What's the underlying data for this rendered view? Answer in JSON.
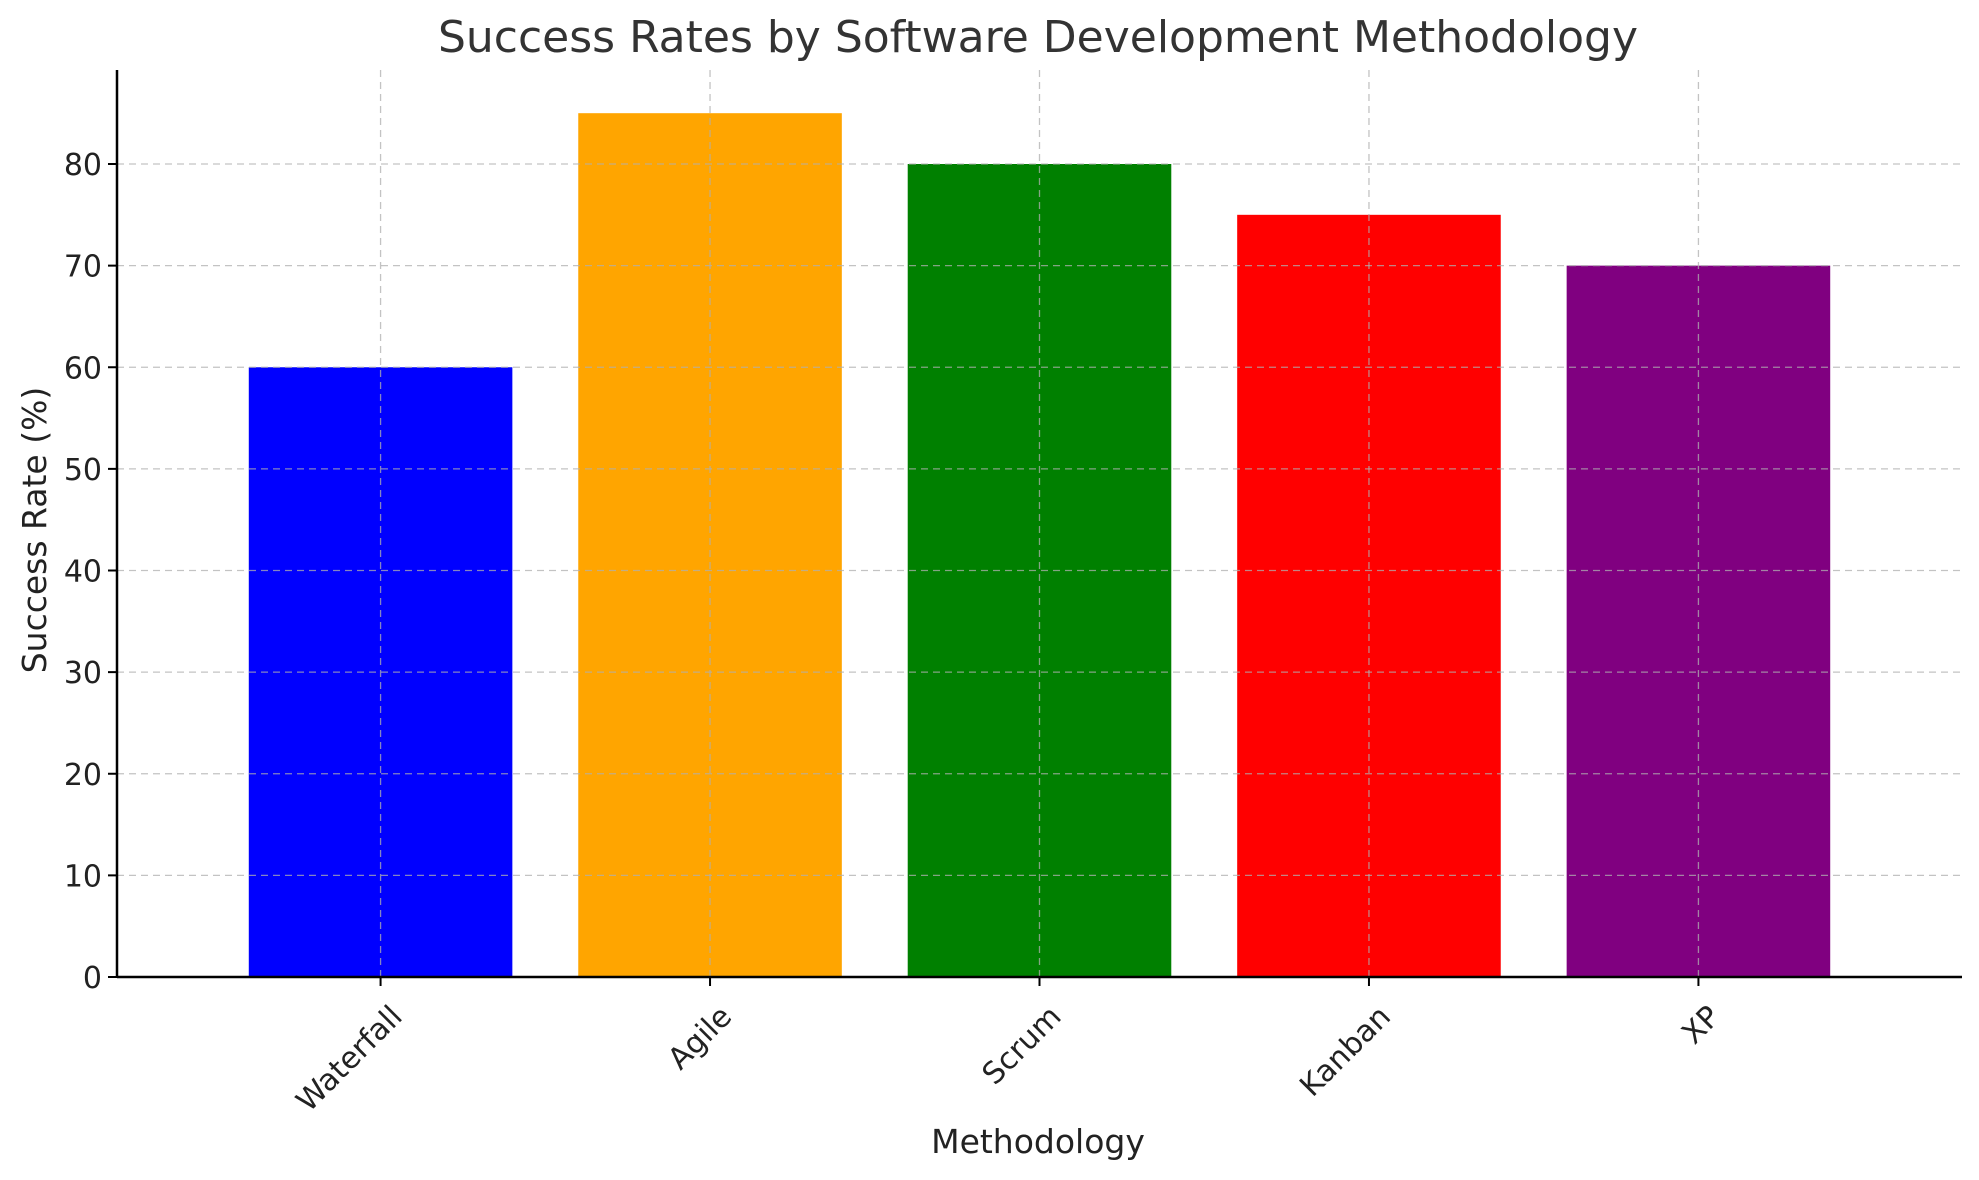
{
  "chart_data": {
    "type": "bar",
    "title": "Success Rates by Software Development Methodology",
    "xlabel": "Methodology",
    "ylabel": "Success Rate (%)",
    "categories": [
      "Waterfall",
      "Agile",
      "Scrum",
      "Kanban",
      "XP"
    ],
    "values": [
      60,
      85,
      80,
      75,
      70
    ],
    "colors": [
      "#0000ff",
      "#ffa500",
      "#008000",
      "#ff0000",
      "#800080"
    ],
    "ylim": [
      0,
      89.25
    ],
    "yticks": [
      0,
      10,
      20,
      30,
      40,
      50,
      60,
      70,
      80
    ],
    "grid": true,
    "legend": "none"
  }
}
